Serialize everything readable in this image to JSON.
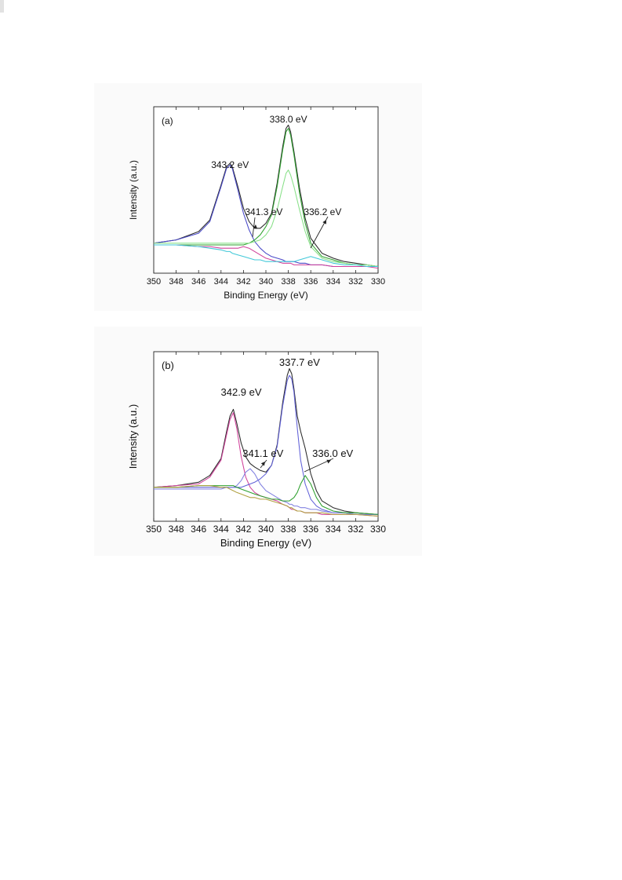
{
  "chart_data": [
    {
      "type": "line",
      "panel_label": "(a)",
      "xlabel": "Binding Energy (eV)",
      "ylabel": "Intensity (a.u.)",
      "xlim": [
        350,
        330
      ],
      "x_reversed": true,
      "ylim": [
        0,
        1
      ],
      "y_tick_labels": false,
      "x_ticks": [
        350,
        348,
        346,
        344,
        342,
        340,
        338,
        336,
        334,
        332,
        330
      ],
      "x": [
        350,
        348,
        346,
        345,
        344,
        343.5,
        343.2,
        343,
        342.5,
        342,
        341.5,
        341,
        340.5,
        340,
        339.5,
        339,
        338.5,
        338.2,
        338,
        337.8,
        337.5,
        337,
        336.5,
        336,
        335,
        334,
        333,
        332,
        331,
        330
      ],
      "series": [
        {
          "color": "#2a2a2a",
          "values": [
            0.18,
            0.2,
            0.25,
            0.32,
            0.53,
            0.64,
            0.66,
            0.64,
            0.52,
            0.39,
            0.31,
            0.27,
            0.27,
            0.3,
            0.36,
            0.54,
            0.76,
            0.87,
            0.89,
            0.85,
            0.73,
            0.51,
            0.33,
            0.21,
            0.12,
            0.09,
            0.07,
            0.06,
            0.05,
            0.04
          ]
        },
        {
          "color": "#4848c8",
          "values": [
            0.18,
            0.2,
            0.24,
            0.31,
            0.52,
            0.63,
            0.65,
            0.63,
            0.5,
            0.36,
            0.26,
            0.19,
            0.15,
            0.12,
            0.1,
            0.09,
            0.08,
            0.07,
            0.07,
            0.07,
            0.07,
            0.06,
            0.06,
            0.05,
            0.05,
            0.04,
            0.04,
            0.04,
            0.04,
            0.04
          ]
        },
        {
          "color": "#2ea02e",
          "values": [
            0.17,
            0.17,
            0.17,
            0.17,
            0.17,
            0.17,
            0.17,
            0.17,
            0.17,
            0.17,
            0.18,
            0.2,
            0.23,
            0.28,
            0.35,
            0.52,
            0.74,
            0.85,
            0.87,
            0.83,
            0.71,
            0.48,
            0.3,
            0.18,
            0.1,
            0.08,
            0.06,
            0.05,
            0.05,
            0.04
          ]
        },
        {
          "color": "#88e088",
          "values": [
            0.18,
            0.18,
            0.18,
            0.18,
            0.18,
            0.18,
            0.18,
            0.18,
            0.18,
            0.18,
            0.18,
            0.19,
            0.2,
            0.23,
            0.28,
            0.38,
            0.52,
            0.6,
            0.62,
            0.59,
            0.52,
            0.38,
            0.25,
            0.16,
            0.09,
            0.07,
            0.06,
            0.05,
            0.05,
            0.04
          ]
        },
        {
          "color": "#d0409a",
          "values": [
            0.17,
            0.17,
            0.16,
            0.16,
            0.15,
            0.15,
            0.15,
            0.15,
            0.15,
            0.16,
            0.15,
            0.13,
            0.11,
            0.09,
            0.08,
            0.07,
            0.06,
            0.06,
            0.06,
            0.06,
            0.05,
            0.05,
            0.05,
            0.05,
            0.05,
            0.04,
            0.04,
            0.04,
            0.04,
            0.03
          ]
        },
        {
          "color": "#40c8d8",
          "values": [
            0.17,
            0.17,
            0.16,
            0.15,
            0.14,
            0.13,
            0.13,
            0.12,
            0.11,
            0.1,
            0.09,
            0.08,
            0.08,
            0.07,
            0.07,
            0.07,
            0.07,
            0.07,
            0.07,
            0.07,
            0.07,
            0.08,
            0.09,
            0.1,
            0.08,
            0.06,
            0.05,
            0.05,
            0.04,
            0.04
          ]
        }
      ],
      "annotations": [
        {
          "text": "343.2 eV",
          "x": 343.2
        },
        {
          "text": "338.0 eV",
          "x": 338.0
        },
        {
          "text": "341.3 eV",
          "x": 341.3
        },
        {
          "text": "336.2 eV",
          "x": 336.2
        }
      ]
    },
    {
      "type": "line",
      "panel_label": "(b)",
      "xlabel": "Binding Energy (eV)",
      "ylabel": "Intensity (a.u.)",
      "xlim": [
        350,
        330
      ],
      "x_reversed": true,
      "ylim": [
        0,
        1
      ],
      "y_tick_labels": false,
      "x_ticks": [
        350,
        348,
        346,
        344,
        342,
        340,
        338,
        336,
        334,
        332,
        330
      ],
      "x": [
        350,
        348,
        346,
        345,
        344,
        343.5,
        343.2,
        342.9,
        342.6,
        342.2,
        341.8,
        341.4,
        341,
        340.5,
        340,
        339.5,
        339,
        338.5,
        338.1,
        337.9,
        337.7,
        337.5,
        337.2,
        336.9,
        336.5,
        336,
        335.5,
        335,
        334,
        333,
        332,
        330
      ],
      "series": [
        {
          "color": "#2a2a2a",
          "values": [
            0.2,
            0.21,
            0.23,
            0.27,
            0.37,
            0.53,
            0.62,
            0.66,
            0.58,
            0.46,
            0.38,
            0.34,
            0.32,
            0.3,
            0.29,
            0.33,
            0.45,
            0.7,
            0.86,
            0.9,
            0.87,
            0.78,
            0.62,
            0.53,
            0.43,
            0.28,
            0.18,
            0.12,
            0.08,
            0.06,
            0.05,
            0.04
          ]
        },
        {
          "color": "#d0409a",
          "values": [
            0.2,
            0.21,
            0.22,
            0.26,
            0.36,
            0.51,
            0.6,
            0.64,
            0.55,
            0.38,
            0.26,
            0.2,
            0.17,
            0.15,
            0.14,
            0.13,
            0.12,
            0.1,
            0.09,
            0.08,
            0.07,
            0.07,
            0.06,
            0.06,
            0.05,
            0.05,
            0.05,
            0.04,
            0.04,
            0.04,
            0.04,
            0.03
          ]
        },
        {
          "color": "#6060d8",
          "values": [
            0.2,
            0.2,
            0.2,
            0.2,
            0.2,
            0.2,
            0.2,
            0.2,
            0.2,
            0.2,
            0.21,
            0.22,
            0.23,
            0.25,
            0.28,
            0.33,
            0.44,
            0.68,
            0.83,
            0.86,
            0.84,
            0.76,
            0.55,
            0.36,
            0.22,
            0.13,
            0.09,
            0.07,
            0.05,
            0.05,
            0.04,
            0.04
          ]
        },
        {
          "color": "#8080e0",
          "values": [
            0.19,
            0.19,
            0.19,
            0.19,
            0.19,
            0.2,
            0.2,
            0.2,
            0.21,
            0.24,
            0.29,
            0.31,
            0.28,
            0.22,
            0.18,
            0.16,
            0.14,
            0.12,
            0.11,
            0.1,
            0.1,
            0.09,
            0.09,
            0.08,
            0.08,
            0.07,
            0.07,
            0.06,
            0.05,
            0.05,
            0.04,
            0.04
          ]
        },
        {
          "color": "#2ea02e",
          "values": [
            0.2,
            0.2,
            0.21,
            0.21,
            0.21,
            0.21,
            0.21,
            0.21,
            0.2,
            0.19,
            0.18,
            0.17,
            0.16,
            0.15,
            0.14,
            0.13,
            0.13,
            0.12,
            0.12,
            0.12,
            0.13,
            0.14,
            0.17,
            0.22,
            0.27,
            0.22,
            0.14,
            0.09,
            0.06,
            0.05,
            0.05,
            0.04
          ]
        },
        {
          "color": "#b0a040",
          "values": [
            0.2,
            0.2,
            0.21,
            0.21,
            0.2,
            0.2,
            0.19,
            0.18,
            0.17,
            0.16,
            0.15,
            0.14,
            0.14,
            0.13,
            0.13,
            0.12,
            0.11,
            0.1,
            0.09,
            0.08,
            0.08,
            0.07,
            0.06,
            0.06,
            0.05,
            0.05,
            0.05,
            0.05,
            0.04,
            0.04,
            0.04,
            0.03
          ]
        }
      ],
      "annotations": [
        {
          "text": "342.9 eV",
          "x": 342.9
        },
        {
          "text": "337.7 eV",
          "x": 337.7
        },
        {
          "text": "341.1 eV",
          "x": 341.1
        },
        {
          "text": "336.0 eV",
          "x": 336.0
        }
      ]
    }
  ]
}
